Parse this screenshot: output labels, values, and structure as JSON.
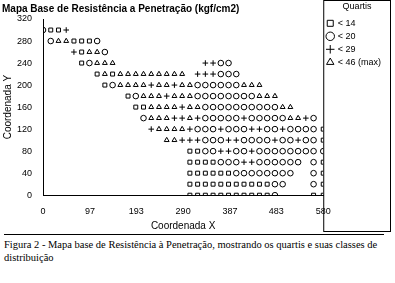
{
  "chart_data": {
    "type": "scatter",
    "title": "Mapa Base de Resistência a Penetração (kgf/cm2)",
    "x_label": "Coordenada X",
    "y_label": "Coordenada Y",
    "caption": "Figura 2 - Mapa base de Resistência à Penetração, mostrando os quartis e suas classes de distribuição",
    "legend_title": "Quartis",
    "legend": "right",
    "grid": false,
    "xlim": [
      0,
      580
    ],
    "xticks": [
      0,
      97,
      193,
      290,
      387,
      483,
      580
    ],
    "ylim": [
      0,
      320
    ],
    "yticks": [
      0,
      40,
      80,
      120,
      160,
      200,
      240,
      280,
      320
    ],
    "series": [
      {
        "name": "< 14",
        "color": "#000000",
        "marker": "square",
        "values": [
          [
            16,
            300
          ],
          [
            32,
            300
          ],
          [
            64,
            280
          ],
          [
            80,
            280
          ],
          [
            96,
            280
          ],
          [
            80,
            260
          ],
          [
            80,
            240
          ],
          [
            112,
            220
          ],
          [
            144,
            220
          ],
          [
            128,
            200
          ],
          [
            176,
            180
          ],
          [
            192,
            160
          ],
          [
            208,
            160
          ],
          [
            580,
            120
          ],
          [
            580,
            100
          ],
          [
            304,
            80
          ],
          [
            320,
            80
          ],
          [
            304,
            60
          ],
          [
            320,
            60
          ],
          [
            336,
            60
          ],
          [
            352,
            60
          ],
          [
            580,
            60
          ],
          [
            304,
            40
          ],
          [
            320,
            40
          ],
          [
            336,
            40
          ],
          [
            352,
            40
          ],
          [
            368,
            40
          ],
          [
            384,
            40
          ],
          [
            580,
            40
          ],
          [
            304,
            20
          ],
          [
            320,
            20
          ],
          [
            336,
            20
          ],
          [
            352,
            20
          ],
          [
            368,
            20
          ],
          [
            384,
            20
          ],
          [
            400,
            20
          ],
          [
            416,
            20
          ],
          [
            432,
            20
          ],
          [
            448,
            20
          ],
          [
            464,
            20
          ],
          [
            580,
            20
          ],
          [
            304,
            0
          ],
          [
            320,
            0
          ],
          [
            336,
            0
          ],
          [
            352,
            0
          ],
          [
            368,
            0
          ],
          [
            384,
            0
          ],
          [
            400,
            0
          ],
          [
            416,
            0
          ],
          [
            432,
            0
          ],
          [
            448,
            0
          ],
          [
            464,
            0
          ],
          [
            560,
            0
          ],
          [
            580,
            0
          ]
        ]
      },
      {
        "name": "< 20",
        "color": "#000000",
        "marker": "circle",
        "values": [
          [
            0,
            300
          ],
          [
            16,
            280
          ],
          [
            112,
            280
          ],
          [
            128,
            260
          ],
          [
            96,
            240
          ],
          [
            368,
            240
          ],
          [
            384,
            240
          ],
          [
            368,
            220
          ],
          [
            384,
            220
          ],
          [
            400,
            220
          ],
          [
            144,
            200
          ],
          [
            320,
            200
          ],
          [
            336,
            200
          ],
          [
            352,
            200
          ],
          [
            368,
            200
          ],
          [
            384,
            200
          ],
          [
            400,
            200
          ],
          [
            192,
            180
          ],
          [
            320,
            180
          ],
          [
            336,
            180
          ],
          [
            352,
            180
          ],
          [
            368,
            180
          ],
          [
            384,
            180
          ],
          [
            400,
            180
          ],
          [
            416,
            180
          ],
          [
            432,
            180
          ],
          [
            336,
            160
          ],
          [
            352,
            160
          ],
          [
            368,
            160
          ],
          [
            384,
            160
          ],
          [
            400,
            160
          ],
          [
            416,
            160
          ],
          [
            432,
            160
          ],
          [
            448,
            160
          ],
          [
            464,
            160
          ],
          [
            480,
            160
          ],
          [
            208,
            140
          ],
          [
            336,
            140
          ],
          [
            352,
            140
          ],
          [
            368,
            140
          ],
          [
            384,
            140
          ],
          [
            400,
            140
          ],
          [
            432,
            140
          ],
          [
            448,
            140
          ],
          [
            464,
            140
          ],
          [
            480,
            140
          ],
          [
            496,
            140
          ],
          [
            560,
            140
          ],
          [
            320,
            120
          ],
          [
            336,
            120
          ],
          [
            352,
            120
          ],
          [
            384,
            120
          ],
          [
            400,
            120
          ],
          [
            416,
            120
          ],
          [
            464,
            120
          ],
          [
            480,
            120
          ],
          [
            512,
            120
          ],
          [
            528,
            120
          ],
          [
            544,
            120
          ],
          [
            560,
            120
          ],
          [
            336,
            100
          ],
          [
            352,
            100
          ],
          [
            368,
            100
          ],
          [
            416,
            100
          ],
          [
            432,
            100
          ],
          [
            448,
            100
          ],
          [
            464,
            100
          ],
          [
            496,
            100
          ],
          [
            512,
            100
          ],
          [
            544,
            100
          ],
          [
            560,
            100
          ],
          [
            336,
            80
          ],
          [
            352,
            80
          ],
          [
            400,
            80
          ],
          [
            416,
            80
          ],
          [
            448,
            80
          ],
          [
            464,
            80
          ],
          [
            480,
            80
          ],
          [
            496,
            80
          ],
          [
            512,
            80
          ],
          [
            528,
            80
          ],
          [
            544,
            80
          ],
          [
            560,
            80
          ],
          [
            580,
            80
          ],
          [
            368,
            60
          ],
          [
            384,
            60
          ],
          [
            400,
            60
          ],
          [
            448,
            60
          ],
          [
            464,
            60
          ],
          [
            480,
            60
          ],
          [
            496,
            60
          ],
          [
            512,
            60
          ],
          [
            528,
            60
          ],
          [
            560,
            60
          ],
          [
            400,
            40
          ],
          [
            416,
            40
          ],
          [
            432,
            40
          ],
          [
            448,
            40
          ],
          [
            464,
            40
          ],
          [
            480,
            40
          ],
          [
            496,
            40
          ],
          [
            512,
            40
          ],
          [
            560,
            40
          ],
          [
            480,
            20
          ],
          [
            496,
            20
          ],
          [
            560,
            20
          ],
          [
            480,
            0
          ]
        ]
      },
      {
        "name": "< 29",
        "color": "#000000",
        "marker": "plus",
        "values": [
          [
            48,
            300
          ],
          [
            64,
            260
          ],
          [
            336,
            240
          ],
          [
            352,
            240
          ],
          [
            320,
            220
          ],
          [
            336,
            220
          ],
          [
            352,
            220
          ],
          [
            224,
            200
          ],
          [
            272,
            200
          ],
          [
            256,
            180
          ],
          [
            288,
            160
          ],
          [
            272,
            140
          ],
          [
            288,
            140
          ],
          [
            320,
            140
          ],
          [
            416,
            140
          ],
          [
            544,
            140
          ],
          [
            224,
            120
          ],
          [
            304,
            120
          ],
          [
            368,
            120
          ],
          [
            432,
            120
          ],
          [
            448,
            120
          ],
          [
            496,
            120
          ],
          [
            288,
            100
          ],
          [
            304,
            100
          ],
          [
            320,
            100
          ],
          [
            384,
            100
          ],
          [
            400,
            100
          ],
          [
            480,
            100
          ],
          [
            528,
            100
          ],
          [
            368,
            80
          ],
          [
            384,
            80
          ],
          [
            432,
            80
          ],
          [
            416,
            60
          ],
          [
            432,
            60
          ]
        ]
      },
      {
        "name": "< 46 (max)",
        "color": "#000000",
        "marker": "triangle",
        "values": [
          [
            32,
            280
          ],
          [
            48,
            280
          ],
          [
            96,
            260
          ],
          [
            112,
            260
          ],
          [
            112,
            240
          ],
          [
            128,
            240
          ],
          [
            144,
            240
          ],
          [
            128,
            220
          ],
          [
            160,
            220
          ],
          [
            176,
            220
          ],
          [
            192,
            220
          ],
          [
            208,
            220
          ],
          [
            224,
            220
          ],
          [
            240,
            220
          ],
          [
            256,
            220
          ],
          [
            272,
            220
          ],
          [
            288,
            220
          ],
          [
            160,
            200
          ],
          [
            176,
            200
          ],
          [
            192,
            200
          ],
          [
            208,
            200
          ],
          [
            240,
            200
          ],
          [
            256,
            200
          ],
          [
            288,
            200
          ],
          [
            304,
            200
          ],
          [
            416,
            200
          ],
          [
            432,
            200
          ],
          [
            448,
            200
          ],
          [
            208,
            180
          ],
          [
            224,
            180
          ],
          [
            240,
            180
          ],
          [
            272,
            180
          ],
          [
            288,
            180
          ],
          [
            304,
            180
          ],
          [
            448,
            180
          ],
          [
            464,
            180
          ],
          [
            480,
            180
          ],
          [
            224,
            160
          ],
          [
            240,
            160
          ],
          [
            256,
            160
          ],
          [
            272,
            160
          ],
          [
            304,
            160
          ],
          [
            320,
            160
          ],
          [
            496,
            160
          ],
          [
            512,
            160
          ],
          [
            224,
            140
          ],
          [
            240,
            140
          ],
          [
            256,
            140
          ],
          [
            304,
            140
          ],
          [
            512,
            140
          ],
          [
            528,
            140
          ],
          [
            240,
            120
          ],
          [
            256,
            120
          ],
          [
            272,
            120
          ],
          [
            288,
            120
          ],
          [
            256,
            100
          ],
          [
            272,
            100
          ]
        ]
      }
    ]
  }
}
